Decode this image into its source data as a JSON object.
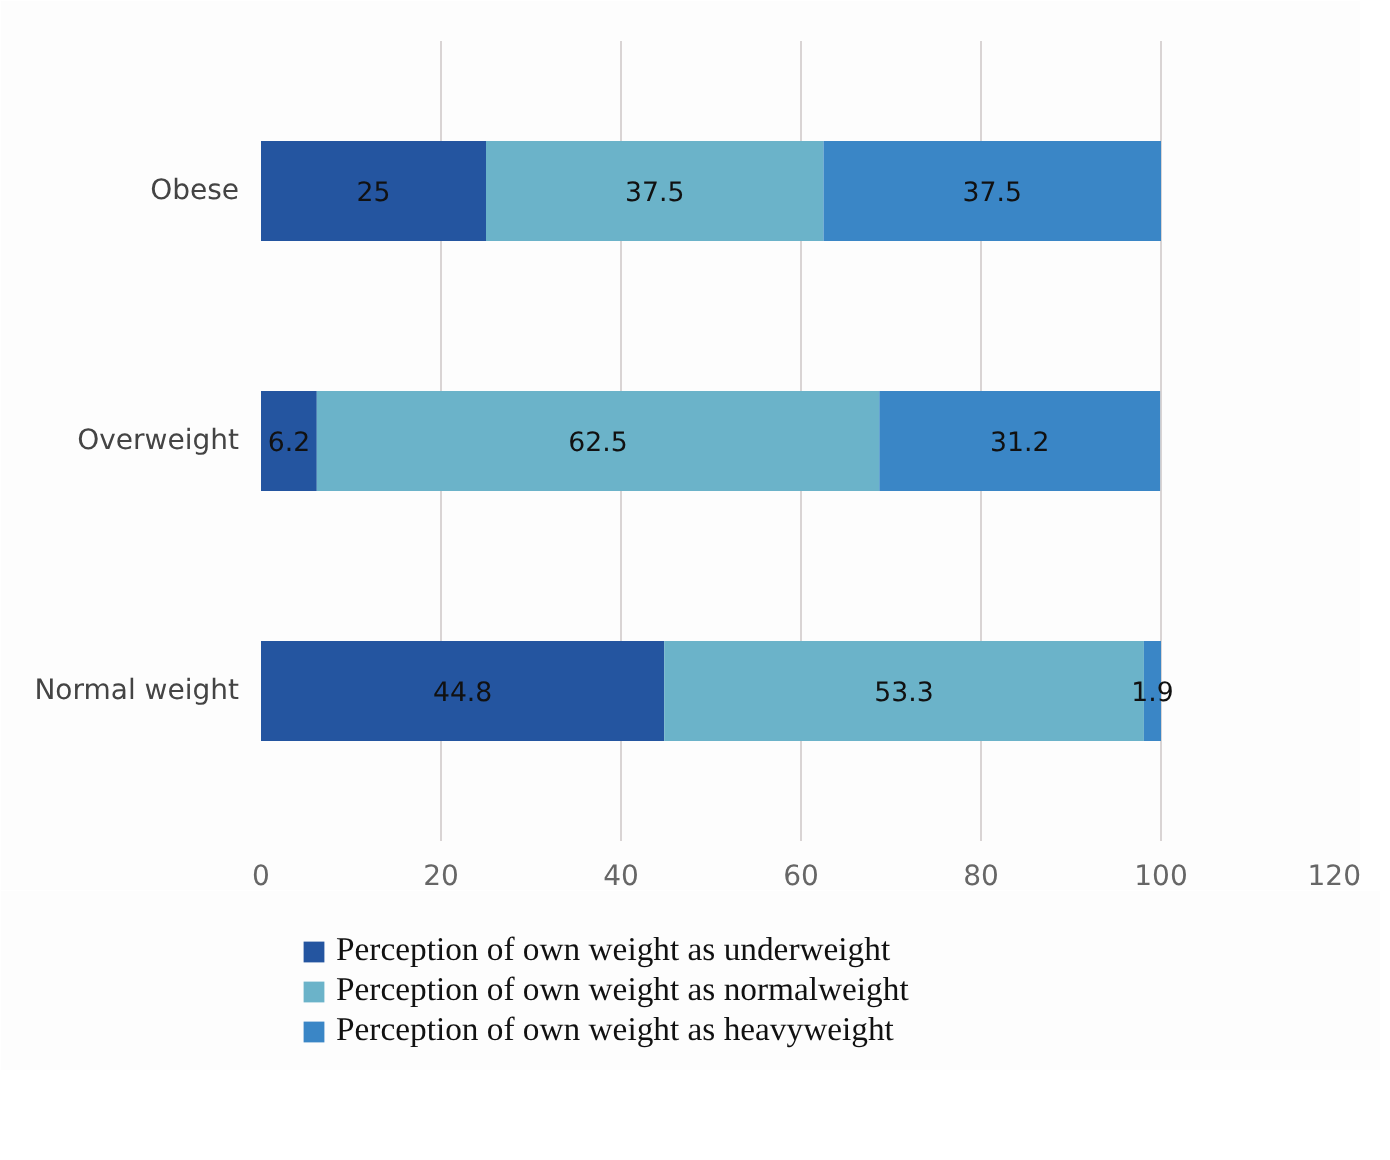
{
  "chart_data": {
    "type": "bar",
    "orientation": "horizontal",
    "stacked": true,
    "categories": [
      "Obese",
      "Overweight",
      "Normal weight"
    ],
    "series": [
      {
        "name": "Perception of own weight as underweight",
        "color": "#2455a0",
        "values": [
          25,
          6.2,
          44.8
        ]
      },
      {
        "name": "Perception of own weight as normalweight",
        "color": "#6bb3c9",
        "values": [
          37.5,
          62.5,
          53.3
        ]
      },
      {
        "name": "Perception of own weight as heavyweight",
        "color": "#3a86c6",
        "values": [
          37.5,
          31.2,
          1.9
        ]
      }
    ],
    "xlim": [
      0,
      120
    ],
    "xticks": [
      0,
      20,
      40,
      60,
      80,
      100,
      120
    ],
    "grid": "x",
    "legend": "bottom",
    "data_labels": true
  }
}
